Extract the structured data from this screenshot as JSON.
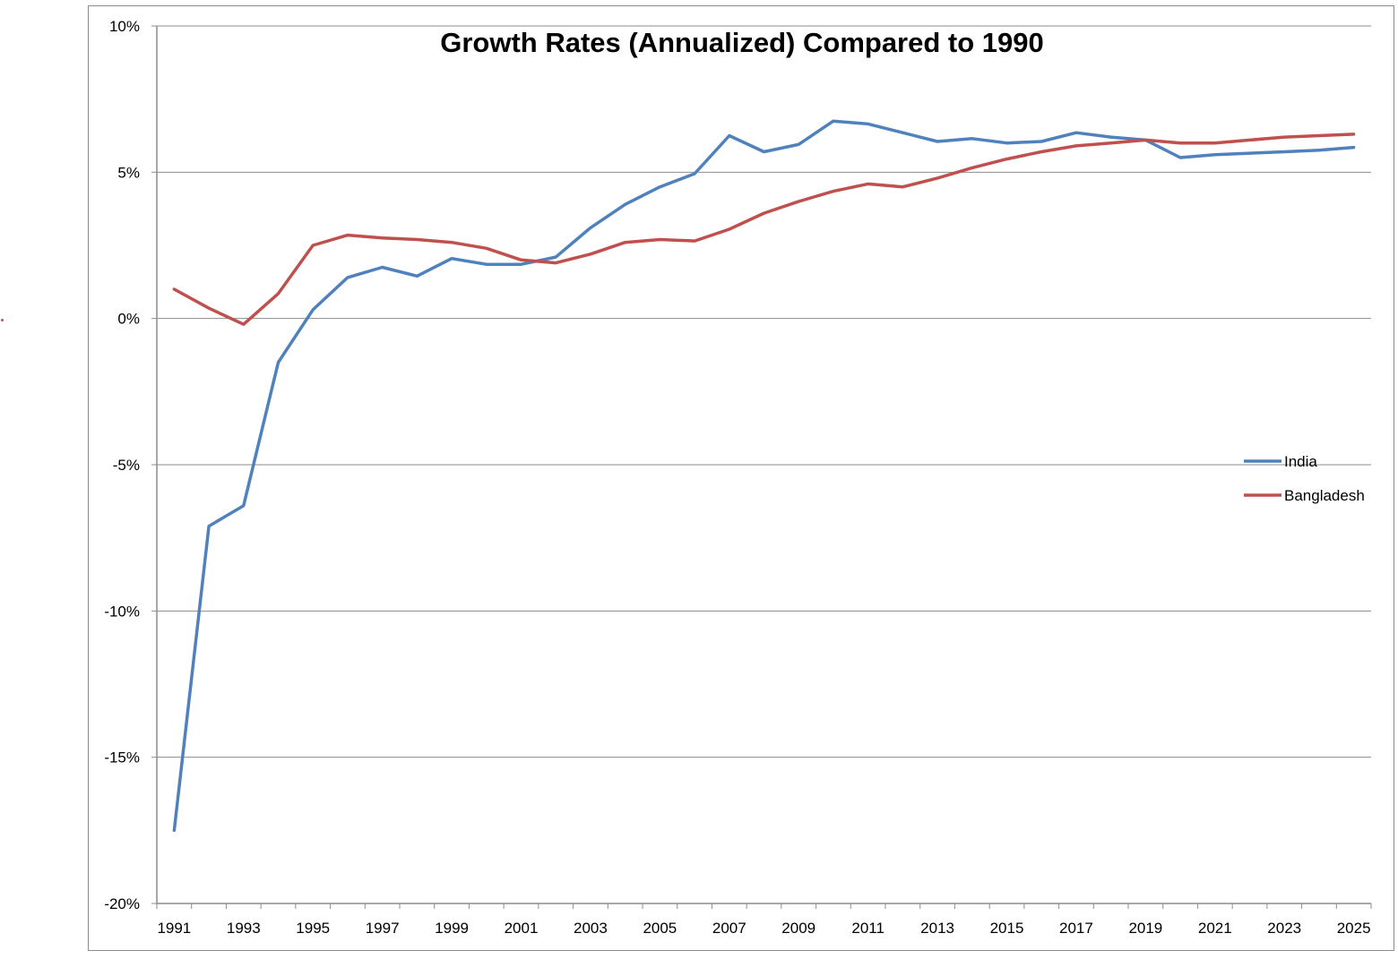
{
  "chart_data": {
    "type": "line",
    "title": "Growth Rates (Annualized) Compared to 1990",
    "xlabel": "",
    "ylabel": "",
    "x": [
      1991,
      1992,
      1993,
      1994,
      1995,
      1996,
      1997,
      1998,
      1999,
      2000,
      2001,
      2002,
      2003,
      2004,
      2005,
      2006,
      2007,
      2008,
      2009,
      2010,
      2011,
      2012,
      2013,
      2014,
      2015,
      2016,
      2017,
      2018,
      2019,
      2020,
      2021,
      2022,
      2023,
      2024,
      2025
    ],
    "x_tick_labels": [
      "1991",
      "1993",
      "1995",
      "1997",
      "1999",
      "2001",
      "2003",
      "2005",
      "2007",
      "2009",
      "2011",
      "2013",
      "2015",
      "2017",
      "2019",
      "2021",
      "2023",
      "2025"
    ],
    "y_tick_labels": [
      "10%",
      "5%",
      "0%",
      "-5%",
      "-10%",
      "-15%",
      "-20%"
    ],
    "ylim": [
      -20,
      10
    ],
    "y_tick_values": [
      10,
      5,
      0,
      -5,
      -10,
      -15,
      -20
    ],
    "grid": "horizontal",
    "legend_position": "right",
    "series": [
      {
        "name": "India",
        "color": "#4f81bd",
        "values": [
          -17.5,
          -7.1,
          -6.4,
          -1.5,
          0.3,
          1.4,
          1.75,
          1.45,
          2.05,
          1.85,
          1.85,
          2.1,
          3.1,
          3.9,
          4.5,
          4.95,
          6.25,
          5.7,
          5.95,
          6.75,
          6.65,
          6.35,
          6.05,
          6.15,
          6.0,
          6.05,
          6.35,
          6.2,
          6.1,
          5.5,
          5.6,
          5.65,
          5.7,
          5.75,
          5.85
        ]
      },
      {
        "name": "Bangladesh",
        "color": "#c0504d",
        "values": [
          1.0,
          0.35,
          -0.2,
          0.85,
          2.5,
          2.85,
          2.75,
          2.7,
          2.6,
          2.4,
          2.0,
          1.9,
          2.2,
          2.6,
          2.7,
          2.65,
          3.05,
          3.6,
          4.0,
          4.35,
          4.6,
          4.5,
          4.8,
          5.15,
          5.45,
          5.7,
          5.9,
          6.0,
          6.1,
          6.0,
          6.0,
          6.1,
          6.2,
          6.25,
          6.3
        ]
      }
    ]
  }
}
